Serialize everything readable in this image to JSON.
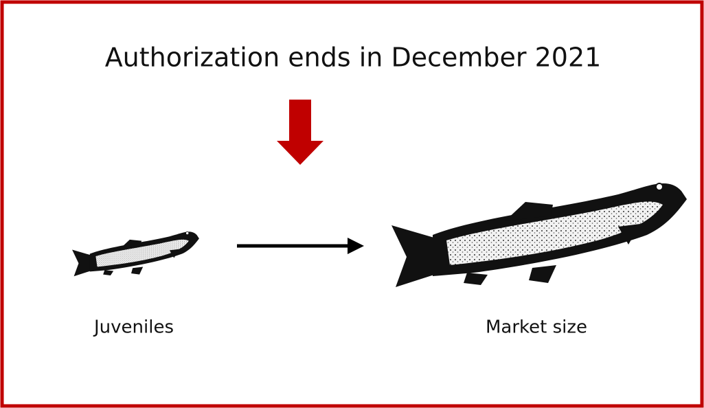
{
  "header": {
    "title": "Authorization ends in December 2021"
  },
  "nodes": [
    {
      "label": "Juveniles"
    },
    {
      "label": "Market size"
    }
  ]
}
